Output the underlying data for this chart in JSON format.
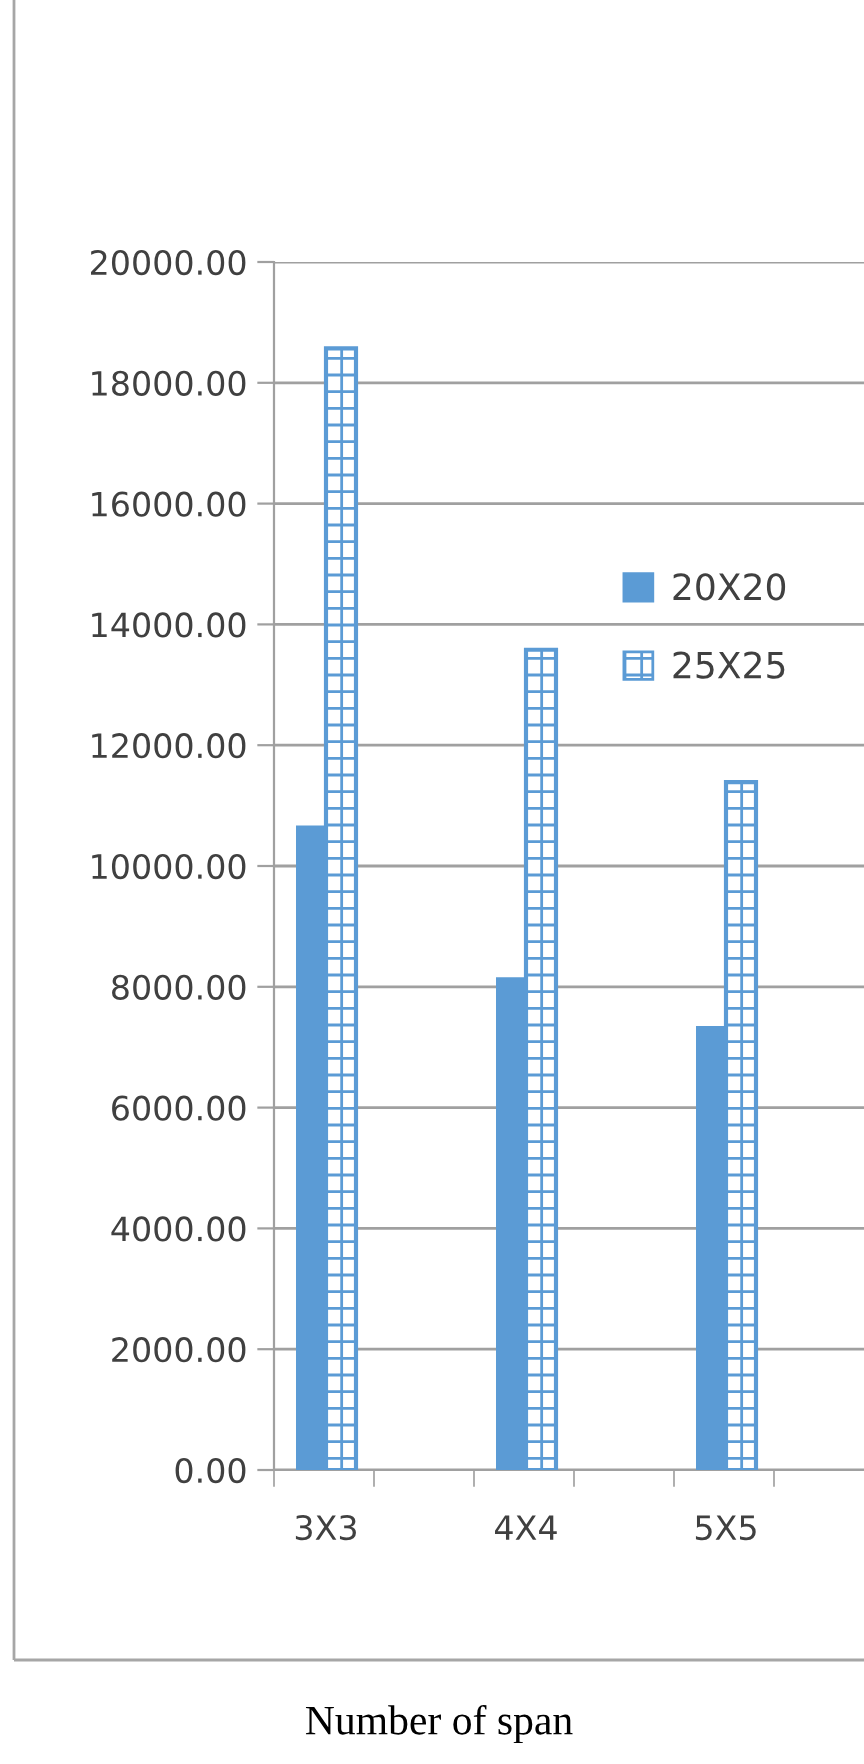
{
  "chart_data": {
    "type": "bar",
    "xlabel": "Number of span",
    "categories": [
      "3X3",
      "4X4",
      "5X5"
    ],
    "series": [
      {
        "name": "20X20",
        "color": "#5b9bd5",
        "values": [
          10670,
          8160,
          7350
        ]
      },
      {
        "name": "25X25",
        "color": "#5b9bd5",
        "values": [
          18570,
          13580,
          11390
        ]
      }
    ],
    "ylim": [
      0,
      20000
    ],
    "yticks": [
      {
        "value": 0,
        "label": "0.00"
      },
      {
        "value": 2000,
        "label": "2000.00"
      },
      {
        "value": 4000,
        "label": "4000.00"
      },
      {
        "value": 6000,
        "label": "6000.00"
      },
      {
        "value": 8000,
        "label": "8000.00"
      },
      {
        "value": 10000,
        "label": "10000.00"
      },
      {
        "value": 12000,
        "label": "12000.00"
      },
      {
        "value": 14000,
        "label": "14000.00"
      },
      {
        "value": 16000,
        "label": "16000.00"
      },
      {
        "value": 18000,
        "label": "18000.00"
      },
      {
        "value": 20000,
        "label": "20000.00"
      }
    ],
    "grid": "y",
    "legend": "right"
  }
}
